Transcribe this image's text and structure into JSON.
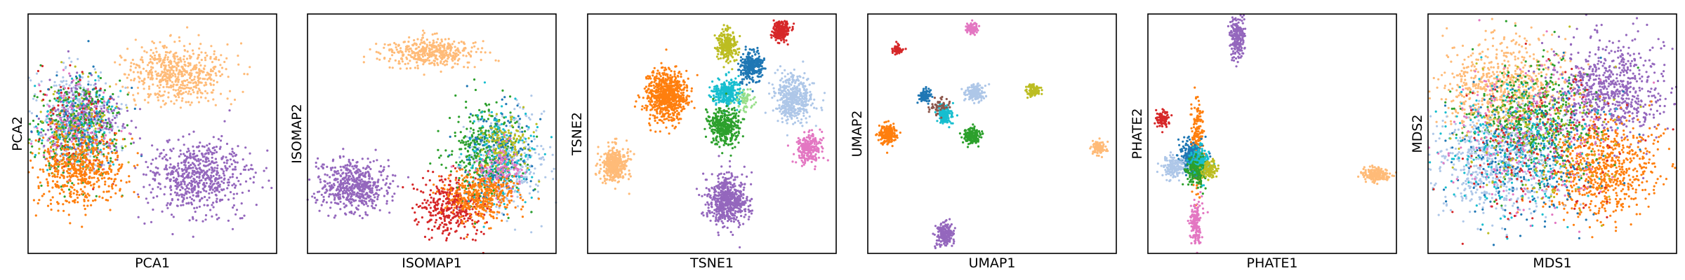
{
  "chart_data": [
    {
      "type": "scatter",
      "xlabel": "PCA1",
      "ylabel": "PCA2",
      "xlim": [
        0,
        100
      ],
      "ylim": [
        0,
        100
      ],
      "clusters": [
        {
          "cx": 20,
          "cy": 56,
          "sx": 8,
          "sy": 10,
          "n": 350,
          "color": "#aec7e8"
        },
        {
          "cx": 22,
          "cy": 55,
          "sx": 8,
          "sy": 9,
          "n": 320,
          "color": "#9467bd"
        },
        {
          "cx": 20,
          "cy": 52,
          "sx": 8,
          "sy": 10,
          "n": 320,
          "color": "#2ca02c"
        },
        {
          "cx": 20,
          "cy": 54,
          "sx": 8,
          "sy": 10,
          "n": 120,
          "color": "#17becf"
        },
        {
          "cx": 21,
          "cy": 53,
          "sx": 8,
          "sy": 10,
          "n": 110,
          "color": "#e377c2"
        },
        {
          "cx": 20,
          "cy": 55,
          "sx": 8,
          "sy": 10,
          "n": 90,
          "color": "#bcbd22"
        },
        {
          "cx": 20,
          "cy": 55,
          "sx": 8,
          "sy": 10,
          "n": 70,
          "color": "#d62728"
        },
        {
          "cx": 21,
          "cy": 55,
          "sx": 8,
          "sy": 10,
          "n": 60,
          "color": "#1f77b4"
        },
        {
          "cx": 21,
          "cy": 35,
          "sx": 9,
          "sy": 8,
          "n": 520,
          "color": "#ff7f0e"
        },
        {
          "cx": 60,
          "cy": 75,
          "sx": 10,
          "sy": 6,
          "n": 560,
          "color": "#ffbb78"
        },
        {
          "cx": 68,
          "cy": 32,
          "sx": 10,
          "sy": 8,
          "n": 640,
          "color": "#9467bd"
        }
      ]
    },
    {
      "type": "scatter",
      "xlabel": "ISOMAP1",
      "ylabel": "ISOMAP2",
      "xlim": [
        0,
        100
      ],
      "ylim": [
        0,
        100
      ],
      "clusters": [
        {
          "cx": 50,
          "cy": 84,
          "sx": 9,
          "sy": 3,
          "n": 420,
          "color": "#ffbb78"
        },
        {
          "cx": 18,
          "cy": 28,
          "sx": 7,
          "sy": 5,
          "n": 560,
          "color": "#9467bd"
        },
        {
          "cx": 58,
          "cy": 20,
          "sx": 7,
          "sy": 6,
          "n": 380,
          "color": "#d62728"
        },
        {
          "cx": 80,
          "cy": 38,
          "sx": 8,
          "sy": 10,
          "n": 380,
          "color": "#aec7e8"
        },
        {
          "cx": 72,
          "cy": 42,
          "sx": 7,
          "sy": 10,
          "n": 360,
          "color": "#2ca02c"
        },
        {
          "cx": 77,
          "cy": 40,
          "sx": 7,
          "sy": 10,
          "n": 180,
          "color": "#17becf"
        },
        {
          "cx": 77,
          "cy": 42,
          "sx": 7,
          "sy": 10,
          "n": 150,
          "color": "#1f77b4"
        },
        {
          "cx": 80,
          "cy": 45,
          "sx": 5,
          "sy": 6,
          "n": 130,
          "color": "#bcbd22"
        },
        {
          "cx": 78,
          "cy": 35,
          "sx": 5,
          "sy": 5,
          "n": 120,
          "color": "#e377c2"
        },
        {
          "cx": 70,
          "cy": 24,
          "sx": 7,
          "sy": 5,
          "n": 380,
          "color": "#ff7f0e"
        }
      ]
    },
    {
      "type": "scatter",
      "xlabel": "TSNE1",
      "ylabel": "TSNE2",
      "xlim": [
        0,
        100
      ],
      "ylim": [
        0,
        100
      ],
      "clusters": [
        {
          "cx": 32,
          "cy": 66,
          "sx": 4.2,
          "sy": 5,
          "n": 700,
          "color": "#ff7f0e"
        },
        {
          "cx": 11,
          "cy": 37,
          "sx": 2.8,
          "sy": 3.6,
          "n": 400,
          "color": "#ffbb78"
        },
        {
          "cx": 56,
          "cy": 87,
          "sx": 2,
          "sy": 3,
          "n": 260,
          "color": "#bcbd22"
        },
        {
          "cx": 78,
          "cy": 93,
          "sx": 1.8,
          "sy": 2.2,
          "n": 220,
          "color": "#d62728"
        },
        {
          "cx": 66,
          "cy": 78,
          "sx": 2.4,
          "sy": 3,
          "n": 280,
          "color": "#1f77b4"
        },
        {
          "cx": 56,
          "cy": 67,
          "sx": 2.8,
          "sy": 2.8,
          "n": 280,
          "color": "#17becf"
        },
        {
          "cx": 55,
          "cy": 53,
          "sx": 3.2,
          "sy": 3.8,
          "n": 360,
          "color": "#2ca02c"
        },
        {
          "cx": 83,
          "cy": 65,
          "sx": 3.6,
          "sy": 4.6,
          "n": 460,
          "color": "#aec7e8"
        },
        {
          "cx": 89,
          "cy": 44,
          "sx": 2.4,
          "sy": 3,
          "n": 240,
          "color": "#e377c2"
        },
        {
          "cx": 56,
          "cy": 22,
          "sx": 4,
          "sy": 5.2,
          "n": 600,
          "color": "#9467bd"
        },
        {
          "cx": 63,
          "cy": 64,
          "sx": 1.8,
          "sy": 2.2,
          "n": 60,
          "color": "#98df8a"
        }
      ]
    },
    {
      "type": "scatter",
      "xlabel": "UMAP1",
      "ylabel": "UMAP2",
      "xlim": [
        0,
        100
      ],
      "ylim": [
        0,
        100
      ],
      "clusters": [
        {
          "cx": 42,
          "cy": 94,
          "sx": 1.2,
          "sy": 1.2,
          "n": 110,
          "color": "#e377c2"
        },
        {
          "cx": 12,
          "cy": 85,
          "sx": 1,
          "sy": 1,
          "n": 70,
          "color": "#d62728"
        },
        {
          "cx": 23,
          "cy": 66,
          "sx": 1.2,
          "sy": 1.3,
          "n": 90,
          "color": "#1f77b4"
        },
        {
          "cx": 43,
          "cy": 67,
          "sx": 1.8,
          "sy": 1.8,
          "n": 150,
          "color": "#aec7e8"
        },
        {
          "cx": 67,
          "cy": 68,
          "sx": 1.4,
          "sy": 1.2,
          "n": 110,
          "color": "#bcbd22"
        },
        {
          "cx": 31,
          "cy": 58,
          "sx": 1.5,
          "sy": 1.8,
          "n": 150,
          "color": "#17becf"
        },
        {
          "cx": 29,
          "cy": 61,
          "sx": 2,
          "sy": 2,
          "n": 50,
          "color": "#8c564b"
        },
        {
          "cx": 8,
          "cy": 50,
          "sx": 1.6,
          "sy": 2,
          "n": 200,
          "color": "#ff7f0e"
        },
        {
          "cx": 42,
          "cy": 49,
          "sx": 1.6,
          "sy": 1.6,
          "n": 170,
          "color": "#2ca02c"
        },
        {
          "cx": 93,
          "cy": 44,
          "sx": 1.3,
          "sy": 1.3,
          "n": 110,
          "color": "#ffbb78"
        },
        {
          "cx": 31,
          "cy": 8,
          "sx": 1.7,
          "sy": 2.2,
          "n": 210,
          "color": "#9467bd"
        }
      ]
    },
    {
      "type": "scatter",
      "xlabel": "PHATE1",
      "ylabel": "PHATE2",
      "xlim": [
        0,
        100
      ],
      "ylim": [
        0,
        100
      ],
      "clusters": [
        {
          "cx": 36,
          "cy": 90,
          "sx": 1.5,
          "sy": 4,
          "n": 210,
          "color": "#9467bd"
        },
        {
          "cx": 6,
          "cy": 56,
          "sx": 1.5,
          "sy": 2,
          "n": 90,
          "color": "#d62728"
        },
        {
          "cx": 20,
          "cy": 46,
          "sx": 1.2,
          "sy": 9,
          "n": 230,
          "color": "#ff7f0e"
        },
        {
          "cx": 17,
          "cy": 40,
          "sx": 2.2,
          "sy": 3.2,
          "n": 250,
          "color": "#1f77b4"
        },
        {
          "cx": 21,
          "cy": 38,
          "sx": 2,
          "sy": 3,
          "n": 200,
          "color": "#17becf"
        },
        {
          "cx": 10,
          "cy": 36,
          "sx": 2.2,
          "sy": 2.4,
          "n": 150,
          "color": "#aec7e8"
        },
        {
          "cx": 19,
          "cy": 34,
          "sx": 2,
          "sy": 3,
          "n": 150,
          "color": "#2ca02c"
        },
        {
          "cx": 25,
          "cy": 35,
          "sx": 1.6,
          "sy": 1.6,
          "n": 100,
          "color": "#bcbd22"
        },
        {
          "cx": 19,
          "cy": 12,
          "sx": 1.3,
          "sy": 5,
          "n": 150,
          "color": "#e377c2"
        },
        {
          "cx": 92,
          "cy": 33,
          "sx": 3,
          "sy": 1.5,
          "n": 180,
          "color": "#ffbb78"
        }
      ]
    },
    {
      "type": "scatter",
      "xlabel": "MDS1",
      "ylabel": "MDS2",
      "xlim": [
        0,
        100
      ],
      "ylim": [
        0,
        100
      ],
      "clusters": [
        {
          "cx": 30,
          "cy": 68,
          "sx": 13,
          "sy": 10,
          "n": 700,
          "color": "#ffbb78"
        },
        {
          "cx": 72,
          "cy": 68,
          "sx": 12,
          "sy": 10,
          "n": 720,
          "color": "#9467bd"
        },
        {
          "cx": 70,
          "cy": 36,
          "sx": 11,
          "sy": 10,
          "n": 720,
          "color": "#ff7f0e"
        },
        {
          "cx": 42,
          "cy": 55,
          "sx": 11,
          "sy": 12,
          "n": 500,
          "color": "#2ca02c"
        },
        {
          "cx": 28,
          "cy": 38,
          "sx": 13,
          "sy": 11,
          "n": 600,
          "color": "#aec7e8"
        },
        {
          "cx": 40,
          "cy": 42,
          "sx": 15,
          "sy": 14,
          "n": 280,
          "color": "#1f77b4"
        },
        {
          "cx": 35,
          "cy": 45,
          "sx": 15,
          "sy": 14,
          "n": 260,
          "color": "#17becf"
        },
        {
          "cx": 40,
          "cy": 48,
          "sx": 16,
          "sy": 15,
          "n": 250,
          "color": "#e377c2"
        },
        {
          "cx": 45,
          "cy": 45,
          "sx": 16,
          "sy": 15,
          "n": 180,
          "color": "#d62728"
        },
        {
          "cx": 45,
          "cy": 50,
          "sx": 16,
          "sy": 15,
          "n": 160,
          "color": "#bcbd22"
        }
      ]
    }
  ]
}
